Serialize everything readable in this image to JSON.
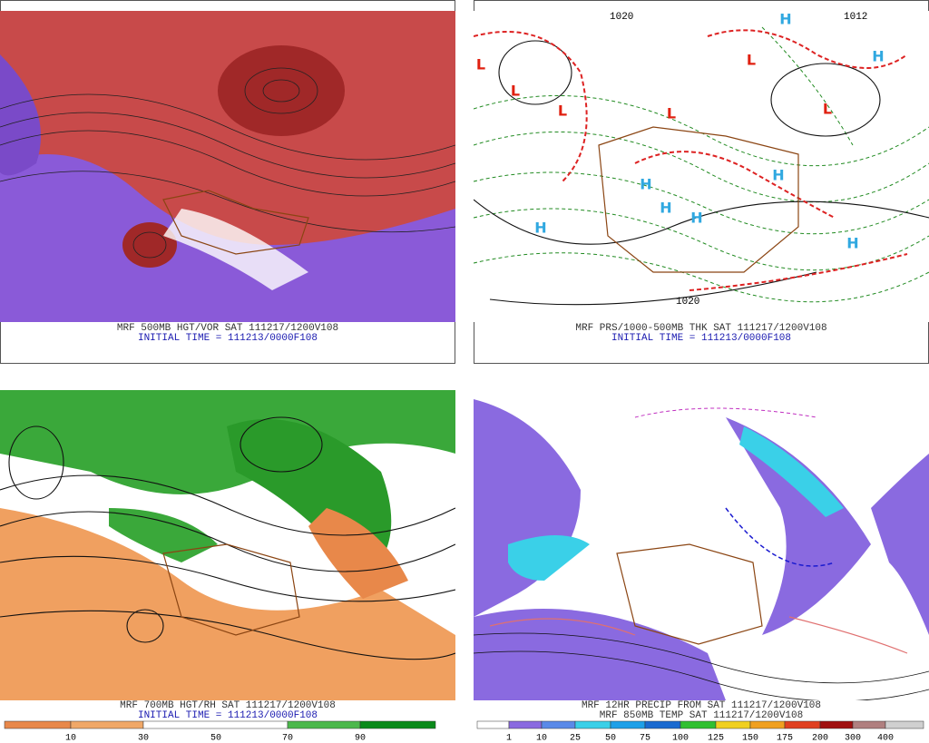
{
  "panels": [
    {
      "caption": "MRF 500MB HGT/VOR SAT 111217/1200V108",
      "initial": "INITIAL TIME = 111213/0000F108"
    },
    {
      "caption": "MRF PRS/1000-500MB THK SAT 111217/1200V108",
      "initial": "INITIAL TIME = 111213/0000F108",
      "markers": [
        "L",
        "L",
        "L",
        "L",
        "L",
        "L",
        "H",
        "H",
        "H",
        "H",
        "H",
        "H",
        "H",
        "H"
      ],
      "contour_labels": [
        "1020",
        "1012",
        "1020"
      ]
    },
    {
      "caption": "MRF 700MB HGT/RH SAT 111217/1200V108",
      "initial": "INITIAL TIME = 111213/0000F108",
      "colorbar": [
        10,
        30,
        50,
        70,
        90
      ]
    },
    {
      "caption": "MRF 12HR PRECIP FROM SAT 111217/1200V108",
      "caption2": "MRF 850MB TEMP SAT 111217/1200V108",
      "colorbar": [
        1,
        10,
        25,
        50,
        75,
        100,
        125,
        150,
        175,
        200,
        300,
        400
      ]
    }
  ]
}
